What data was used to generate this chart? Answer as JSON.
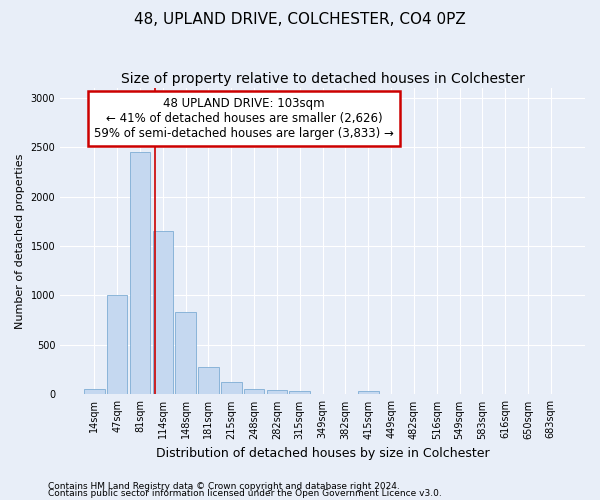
{
  "title": "48, UPLAND DRIVE, COLCHESTER, CO4 0PZ",
  "subtitle": "Size of property relative to detached houses in Colchester",
  "xlabel": "Distribution of detached houses by size in Colchester",
  "ylabel": "Number of detached properties",
  "footnote1": "Contains HM Land Registry data © Crown copyright and database right 2024.",
  "footnote2": "Contains public sector information licensed under the Open Government Licence v3.0.",
  "bin_labels": [
    "14sqm",
    "47sqm",
    "81sqm",
    "114sqm",
    "148sqm",
    "181sqm",
    "215sqm",
    "248sqm",
    "282sqm",
    "315sqm",
    "349sqm",
    "382sqm",
    "415sqm",
    "449sqm",
    "482sqm",
    "516sqm",
    "549sqm",
    "583sqm",
    "616sqm",
    "650sqm",
    "683sqm"
  ],
  "bar_heights": [
    50,
    1000,
    2450,
    1650,
    830,
    275,
    130,
    55,
    45,
    35,
    0,
    0,
    35,
    0,
    0,
    0,
    0,
    0,
    0,
    0,
    0
  ],
  "bar_color": "#c5d8f0",
  "bar_edge_color": "#7eadd4",
  "annotation_line1": "48 UPLAND DRIVE: 103sqm",
  "annotation_line2": "← 41% of detached houses are smaller (2,626)",
  "annotation_line3": "59% of semi-detached houses are larger (3,833) →",
  "annotation_box_color": "#cc0000",
  "vertical_line_x": 2.68,
  "vertical_line_color": "#cc0000",
  "ylim": [
    0,
    3100
  ],
  "yticks": [
    0,
    500,
    1000,
    1500,
    2000,
    2500,
    3000
  ],
  "background_color": "#e8eef8",
  "grid_color": "#ffffff",
  "title_fontsize": 11,
  "subtitle_fontsize": 10,
  "xlabel_fontsize": 9,
  "ylabel_fontsize": 8,
  "tick_fontsize": 7,
  "annotation_fontsize": 8.5,
  "footnote_fontsize": 6.5
}
